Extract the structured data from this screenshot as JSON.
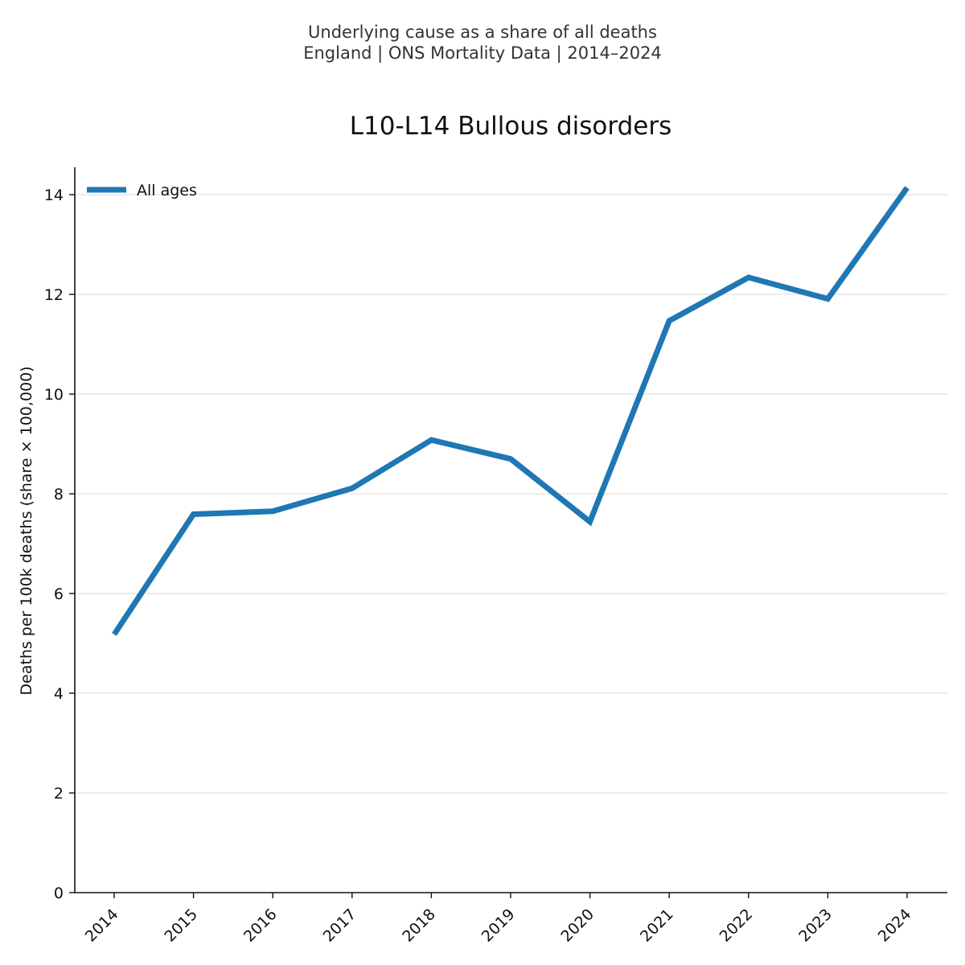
{
  "header": {
    "line1": "Underlying cause as a share of all deaths",
    "line2": "England | ONS Mortality Data | 2014–2024"
  },
  "chart_data": {
    "type": "line",
    "title": "L10-L14 Bullous disorders",
    "xlabel": "",
    "ylabel": "Deaths per 100k deaths (share × 100,000)",
    "categories": [
      "2014",
      "2015",
      "2016",
      "2017",
      "2018",
      "2019",
      "2020",
      "2021",
      "2022",
      "2023",
      "2024"
    ],
    "series": [
      {
        "name": "All ages",
        "color": "#1f77b4",
        "values": [
          5.18,
          7.59,
          7.65,
          8.11,
          9.08,
          8.7,
          7.44,
          11.47,
          12.34,
          11.91,
          14.14
        ]
      }
    ],
    "ylim": [
      0,
      14.55
    ],
    "yticks": [
      0,
      2,
      4,
      6,
      8,
      10,
      12,
      14
    ],
    "grid": "horizontal",
    "legend": "top-left"
  }
}
